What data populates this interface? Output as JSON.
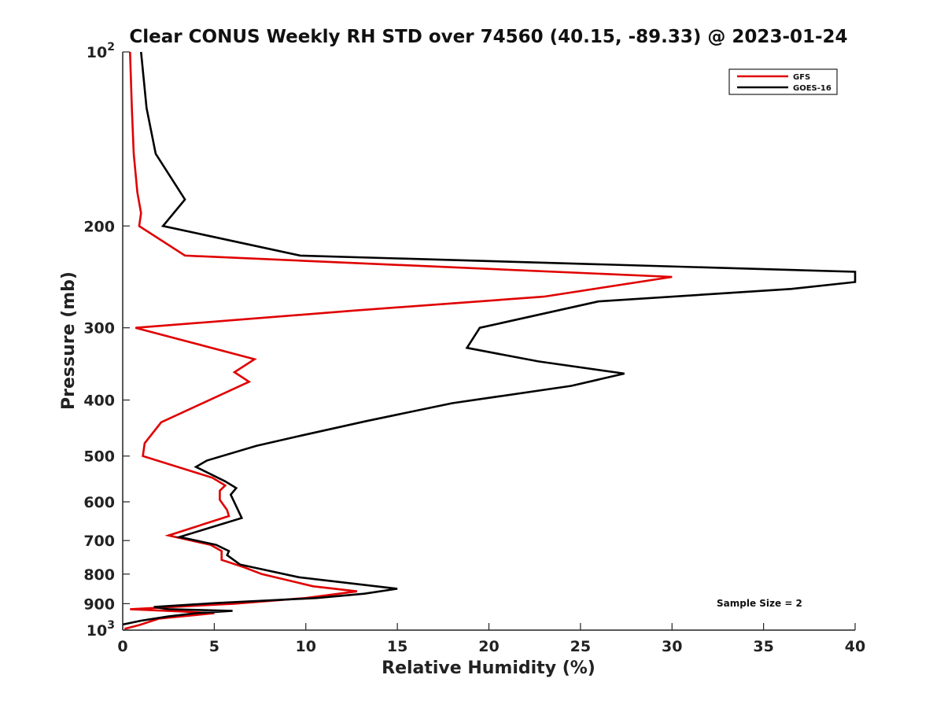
{
  "chart_data": {
    "type": "line",
    "title": "Clear CONUS Weekly RH STD over 74560 (40.15, -89.33) @ 2023-01-24",
    "xlabel": "Relative Humidity (%)",
    "ylabel": "Pressure (mb)",
    "xlim": [
      0,
      40
    ],
    "ylim": [
      100,
      1000
    ],
    "y_scale": "log",
    "y_reversed": true,
    "x_ticks": [
      0,
      5,
      10,
      15,
      20,
      25,
      30,
      35,
      40
    ],
    "x_tick_labels": [
      "0",
      "5",
      "10",
      "15",
      "20",
      "25",
      "30",
      "35",
      "40"
    ],
    "y_ticks": [
      100,
      200,
      300,
      400,
      500,
      600,
      700,
      800,
      900,
      1000
    ],
    "y_tick_labels": [
      {
        "base": "10",
        "exp": "2"
      },
      {
        "base": "200",
        "exp": ""
      },
      {
        "base": "300",
        "exp": ""
      },
      {
        "base": "400",
        "exp": ""
      },
      {
        "base": "500",
        "exp": ""
      },
      {
        "base": "600",
        "exp": ""
      },
      {
        "base": "700",
        "exp": ""
      },
      {
        "base": "800",
        "exp": ""
      },
      {
        "base": "900",
        "exp": ""
      },
      {
        "base": "10",
        "exp": "3"
      }
    ],
    "grid": false,
    "legend_position": "top-right",
    "annotation": "Sample Size = 2",
    "series": [
      {
        "name": "GFS",
        "color": "#e00000",
        "points": [
          [
            0.4,
            100
          ],
          [
            0.5,
            125
          ],
          [
            0.6,
            150
          ],
          [
            0.8,
            175
          ],
          [
            1.0,
            190
          ],
          [
            0.9,
            200
          ],
          [
            3.4,
            225
          ],
          [
            30.0,
            245
          ],
          [
            23.0,
            265
          ],
          [
            12.7,
            280
          ],
          [
            0.7,
            300
          ],
          [
            7.2,
            340
          ],
          [
            6.1,
            358
          ],
          [
            6.9,
            372
          ],
          [
            2.1,
            437
          ],
          [
            1.2,
            475
          ],
          [
            1.1,
            500
          ],
          [
            4.9,
            545
          ],
          [
            5.6,
            562
          ],
          [
            5.3,
            574
          ],
          [
            5.3,
            595
          ],
          [
            5.7,
            620
          ],
          [
            5.8,
            635
          ],
          [
            2.5,
            686
          ],
          [
            4.8,
            712
          ],
          [
            5.4,
            730
          ],
          [
            5.4,
            756
          ],
          [
            6.6,
            778
          ],
          [
            7.6,
            800
          ],
          [
            10.4,
            840
          ],
          [
            12.8,
            857
          ],
          [
            10.0,
            880
          ],
          [
            6.1,
            900
          ],
          [
            0.4,
            920
          ],
          [
            3.0,
            928
          ],
          [
            5.0,
            935
          ],
          [
            2.0,
            955
          ],
          [
            0.9,
            980
          ],
          [
            0.1,
            995
          ]
        ]
      },
      {
        "name": "GOES-16",
        "color": "#000000",
        "points": [
          [
            1.0,
            100
          ],
          [
            1.3,
            125
          ],
          [
            1.8,
            150
          ],
          [
            2.9,
            170
          ],
          [
            3.4,
            180
          ],
          [
            2.2,
            200
          ],
          [
            9.7,
            225
          ],
          [
            40.0,
            240
          ],
          [
            40.0,
            250
          ],
          [
            36.5,
            257
          ],
          [
            26.0,
            270
          ],
          [
            19.5,
            300
          ],
          [
            18.8,
            325
          ],
          [
            22.7,
            343
          ],
          [
            27.4,
            360
          ],
          [
            24.5,
            378
          ],
          [
            18.0,
            405
          ],
          [
            13.3,
            435
          ],
          [
            9.6,
            462
          ],
          [
            7.3,
            480
          ],
          [
            4.6,
            509
          ],
          [
            4.0,
            522
          ],
          [
            5.6,
            553
          ],
          [
            6.2,
            568
          ],
          [
            5.9,
            583
          ],
          [
            6.3,
            620
          ],
          [
            6.5,
            640
          ],
          [
            3.1,
            690
          ],
          [
            5.1,
            712
          ],
          [
            5.8,
            730
          ],
          [
            5.7,
            742
          ],
          [
            6.4,
            770
          ],
          [
            9.6,
            810
          ],
          [
            15.0,
            848
          ],
          [
            13.2,
            865
          ],
          [
            10.6,
            880
          ],
          [
            5.0,
            898
          ],
          [
            1.7,
            912
          ],
          [
            2.5,
            920
          ],
          [
            6.0,
            926
          ],
          [
            4.0,
            935
          ],
          [
            2.5,
            947
          ],
          [
            1.0,
            963
          ],
          [
            0.0,
            978
          ]
        ]
      }
    ]
  }
}
